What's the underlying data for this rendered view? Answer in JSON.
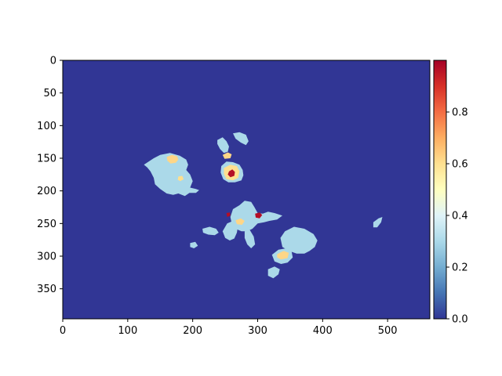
{
  "chart_data": {
    "type": "heatmap",
    "title": "",
    "xlabel": "",
    "ylabel": "",
    "image_width": 565,
    "image_height": 396,
    "xlim": [
      0,
      565
    ],
    "ylim": [
      396,
      0
    ],
    "x_ticks": [
      0,
      100,
      200,
      300,
      400,
      500
    ],
    "y_ticks": [
      0,
      50,
      100,
      150,
      200,
      250,
      300,
      350
    ],
    "x_tick_labels": [
      "0",
      "100",
      "200",
      "300",
      "400",
      "500"
    ],
    "y_tick_labels": [
      "0",
      "50",
      "100",
      "150",
      "200",
      "250",
      "300",
      "350"
    ],
    "colormap": "RdYlBu_r",
    "colorbar": {
      "range": [
        0.0,
        1.0
      ],
      "ticks": [
        0.0,
        0.2,
        0.4,
        0.6,
        0.8
      ],
      "tick_labels": [
        "0.0",
        "0.2",
        "0.4",
        "0.6",
        "0.8"
      ],
      "stops": [
        "#313695",
        "#4575b4",
        "#74add1",
        "#abd9e9",
        "#e0f3f8",
        "#ffffbf",
        "#fee090",
        "#fdae61",
        "#f46d43",
        "#d73027",
        "#a50026"
      ]
    },
    "background_value": 0.0,
    "regions": [
      {
        "id": "west-cluster",
        "value": 0.3,
        "outline": [
          [
            125,
            160
          ],
          [
            140,
            150
          ],
          [
            150,
            145
          ],
          [
            165,
            142
          ],
          [
            180,
            146
          ],
          [
            190,
            152
          ],
          [
            193,
            160
          ],
          [
            190,
            168
          ],
          [
            196,
            175
          ],
          [
            200,
            185
          ],
          [
            196,
            195
          ],
          [
            205,
            197
          ],
          [
            210,
            199
          ],
          [
            205,
            203
          ],
          [
            195,
            203
          ],
          [
            188,
            208
          ],
          [
            178,
            204
          ],
          [
            170,
            206
          ],
          [
            160,
            204
          ],
          [
            150,
            197
          ],
          [
            142,
            190
          ],
          [
            140,
            180
          ],
          [
            135,
            170
          ],
          [
            130,
            164
          ]
        ]
      },
      {
        "id": "west-hot-1",
        "value": 0.62,
        "outline": [
          [
            160,
            148
          ],
          [
            168,
            145
          ],
          [
            176,
            147
          ],
          [
            178,
            152
          ],
          [
            174,
            157
          ],
          [
            166,
            158
          ],
          [
            161,
            154
          ]
        ]
      },
      {
        "id": "west-hot-2",
        "value": 0.6,
        "outline": [
          [
            178,
            178
          ],
          [
            184,
            177
          ],
          [
            186,
            182
          ],
          [
            181,
            185
          ],
          [
            177,
            183
          ]
        ]
      },
      {
        "id": "north-central",
        "value": 0.3,
        "outline": [
          [
            244,
            162
          ],
          [
            252,
            155
          ],
          [
            262,
            156
          ],
          [
            272,
            160
          ],
          [
            277,
            168
          ],
          [
            278,
            176
          ],
          [
            275,
            184
          ],
          [
            265,
            187
          ],
          [
            255,
            187
          ],
          [
            247,
            182
          ],
          [
            243,
            172
          ]
        ]
      },
      {
        "id": "north-central-warm",
        "value": 0.6,
        "outline": [
          [
            248,
            165
          ],
          [
            258,
            160
          ],
          [
            268,
            162
          ],
          [
            272,
            170
          ],
          [
            270,
            180
          ],
          [
            262,
            184
          ],
          [
            252,
            182
          ],
          [
            248,
            174
          ]
        ]
      },
      {
        "id": "north-central-hot",
        "value": 0.97,
        "outline": [
          [
            256,
            170
          ],
          [
            261,
            167
          ],
          [
            265,
            171
          ],
          [
            264,
            177
          ],
          [
            258,
            179
          ],
          [
            254,
            175
          ]
        ]
      },
      {
        "id": "north-central-top",
        "value": 0.62,
        "outline": [
          [
            246,
            145
          ],
          [
            254,
            141
          ],
          [
            260,
            144
          ],
          [
            258,
            150
          ],
          [
            249,
            151
          ]
        ]
      },
      {
        "id": "north-strand",
        "value": 0.3,
        "outline": [
          [
            238,
            122
          ],
          [
            246,
            118
          ],
          [
            252,
            124
          ],
          [
            256,
            132
          ],
          [
            254,
            140
          ],
          [
            248,
            142
          ],
          [
            242,
            136
          ],
          [
            238,
            128
          ]
        ]
      },
      {
        "id": "north-tail",
        "value": 0.3,
        "outline": [
          [
            262,
            112
          ],
          [
            272,
            110
          ],
          [
            282,
            114
          ],
          [
            286,
            124
          ],
          [
            282,
            130
          ],
          [
            274,
            126
          ],
          [
            266,
            120
          ]
        ]
      },
      {
        "id": "center-cluster",
        "value": 0.3,
        "outline": [
          [
            262,
            228
          ],
          [
            272,
            222
          ],
          [
            280,
            215
          ],
          [
            290,
            217
          ],
          [
            295,
            225
          ],
          [
            300,
            234
          ],
          [
            308,
            235
          ],
          [
            316,
            232
          ],
          [
            326,
            234
          ],
          [
            338,
            238
          ],
          [
            330,
            244
          ],
          [
            318,
            246
          ],
          [
            310,
            248
          ],
          [
            300,
            250
          ],
          [
            292,
            258
          ],
          [
            284,
            262
          ],
          [
            275,
            262
          ],
          [
            266,
            258
          ],
          [
            260,
            250
          ],
          [
            258,
            240
          ]
        ]
      },
      {
        "id": "center-warm",
        "value": 0.62,
        "outline": [
          [
            266,
            245
          ],
          [
            274,
            242
          ],
          [
            280,
            246
          ],
          [
            276,
            252
          ],
          [
            268,
            251
          ]
        ]
      },
      {
        "id": "center-hot-1",
        "value": 0.97,
        "outline": [
          [
            296,
            235
          ],
          [
            303,
            233
          ],
          [
            307,
            237
          ],
          [
            303,
            242
          ],
          [
            297,
            241
          ]
        ]
      },
      {
        "id": "center-hot-2",
        "value": 0.97,
        "outline": [
          [
            252,
            234
          ],
          [
            257,
            233
          ],
          [
            258,
            238
          ],
          [
            253,
            240
          ]
        ]
      },
      {
        "id": "south-left-blob",
        "value": 0.3,
        "outline": [
          [
            253,
            250
          ],
          [
            262,
            246
          ],
          [
            270,
            252
          ],
          [
            268,
            264
          ],
          [
            264,
            273
          ],
          [
            257,
            276
          ],
          [
            250,
            272
          ],
          [
            246,
            262
          ]
        ]
      },
      {
        "id": "south-left-wing",
        "value": 0.3,
        "outline": [
          [
            215,
            258
          ],
          [
            226,
            255
          ],
          [
            236,
            258
          ],
          [
            240,
            264
          ],
          [
            234,
            268
          ],
          [
            224,
            267
          ],
          [
            216,
            264
          ]
        ]
      },
      {
        "id": "south-left-drop",
        "value": 0.3,
        "outline": [
          [
            196,
            280
          ],
          [
            204,
            278
          ],
          [
            208,
            284
          ],
          [
            202,
            288
          ],
          [
            196,
            286
          ]
        ]
      },
      {
        "id": "south-strand",
        "value": 0.3,
        "outline": [
          [
            280,
            262
          ],
          [
            288,
            260
          ],
          [
            294,
            270
          ],
          [
            296,
            282
          ],
          [
            290,
            288
          ],
          [
            284,
            282
          ],
          [
            280,
            272
          ]
        ]
      },
      {
        "id": "east-blob",
        "value": 0.3,
        "outline": [
          [
            335,
            272
          ],
          [
            342,
            262
          ],
          [
            356,
            255
          ],
          [
            372,
            258
          ],
          [
            386,
            266
          ],
          [
            392,
            276
          ],
          [
            388,
            286
          ],
          [
            380,
            292
          ],
          [
            372,
            296
          ],
          [
            360,
            296
          ],
          [
            348,
            292
          ],
          [
            338,
            286
          ]
        ]
      },
      {
        "id": "southeast-blob",
        "value": 0.3,
        "outline": [
          [
            322,
            298
          ],
          [
            332,
            290
          ],
          [
            344,
            288
          ],
          [
            352,
            292
          ],
          [
            354,
            302
          ],
          [
            346,
            310
          ],
          [
            336,
            312
          ],
          [
            326,
            308
          ]
        ]
      },
      {
        "id": "southeast-warm",
        "value": 0.62,
        "outline": [
          [
            330,
            297
          ],
          [
            340,
            292
          ],
          [
            348,
            295
          ],
          [
            346,
            303
          ],
          [
            336,
            305
          ],
          [
            330,
            302
          ]
        ]
      },
      {
        "id": "southeast-tail",
        "value": 0.3,
        "outline": [
          [
            316,
            320
          ],
          [
            326,
            316
          ],
          [
            334,
            320
          ],
          [
            332,
            328
          ],
          [
            324,
            334
          ],
          [
            316,
            330
          ]
        ]
      },
      {
        "id": "far-east-speck",
        "value": 0.3,
        "outline": [
          [
            478,
            248
          ],
          [
            486,
            242
          ],
          [
            492,
            240
          ],
          [
            490,
            248
          ],
          [
            484,
            256
          ],
          [
            478,
            256
          ]
        ]
      }
    ]
  }
}
